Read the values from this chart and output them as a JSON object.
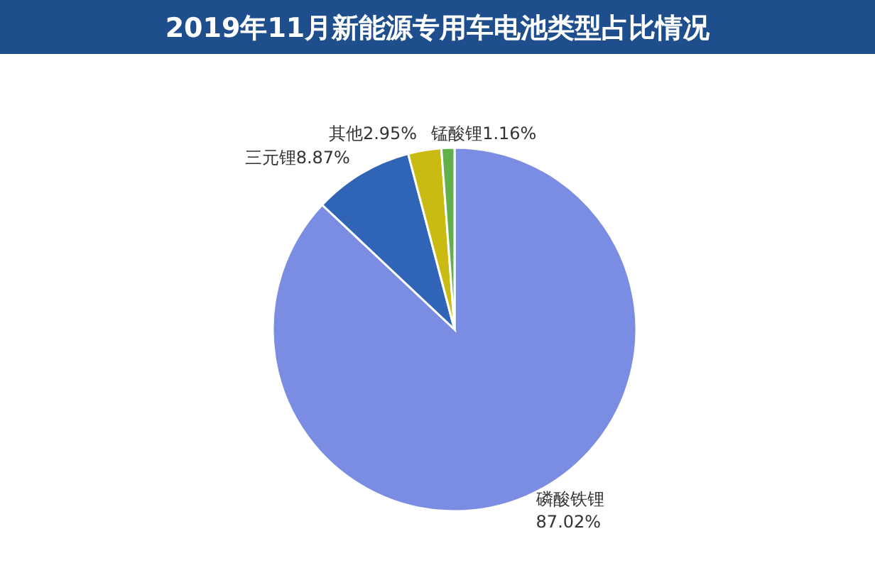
{
  "chart_data": {
    "type": "pie",
    "title": "2019年11月新能源专用车电池类型占比情况",
    "categories": [
      "磷酸铁锂",
      "三元锂",
      "其他",
      "锰酸锂"
    ],
    "values": [
      87.02,
      8.87,
      2.95,
      1.16
    ],
    "colors": [
      "#7b8de3",
      "#2f64b6",
      "#c9bb12",
      "#62b04b"
    ],
    "value_labels": [
      "87.02%",
      "8.87%",
      "2.95%",
      "1.16%"
    ]
  }
}
